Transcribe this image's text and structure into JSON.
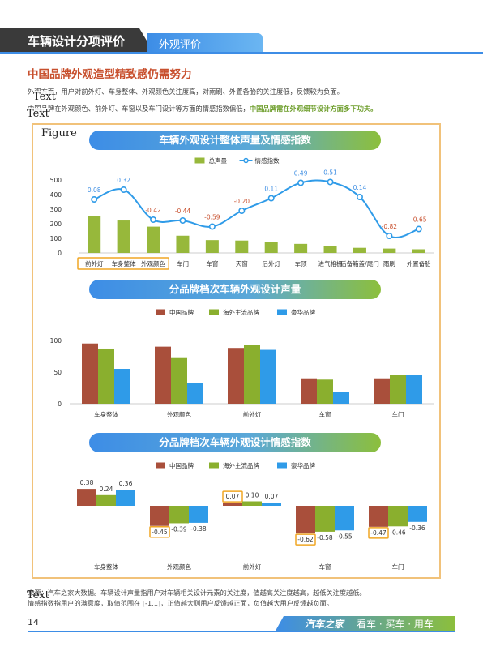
{
  "header": {
    "chapter": "车辆设计分项评价",
    "section": "外观评价"
  },
  "section_title": "中国品牌外观造型精致感仍需努力",
  "paragraphs": {
    "line1": "外观方面，用户对前外灯、车身整体、外观颜色关注度高，对雨刷、外置备胎的关注度低，反馈较为负面。",
    "line2a": "中国品牌在外观颜色、前外灯、车窗以及车门设计等方面的情感指数偏低，",
    "line2b": "中国品牌需在外观细节设计方面多下功夫。"
  },
  "layout_tags": {
    "text1": "Text",
    "text2": "Text",
    "figure": "Figure",
    "text3": "Text"
  },
  "colors": {
    "bar_green": "#97b83b",
    "line_blue": "#2f9be8",
    "china": "#a94f3b",
    "overseas": "#8aaf2e",
    "luxury": "#2f9be8",
    "positive": "#3e8ee3",
    "negative": "#c8502e",
    "highlight": "#f0a623"
  },
  "chart_data": [
    {
      "type": "bar",
      "title": "车辆外观设计整体声量及情感指数",
      "legend": [
        "总声量",
        "情感指数"
      ],
      "legend_position": "top-center",
      "categories": [
        "前外灯",
        "车身整体",
        "外观颜色",
        "车门",
        "车窗",
        "天窗",
        "后外灯",
        "车顶",
        "进气格栅",
        "后备箱盖/尾门",
        "雨刷",
        "外置备胎"
      ],
      "series": [
        {
          "name": "总声量",
          "type": "bar",
          "values": [
            250,
            222,
            180,
            118,
            88,
            85,
            75,
            62,
            50,
            35,
            30,
            25
          ]
        },
        {
          "name": "情感指数",
          "type": "line",
          "values": [
            0.08,
            0.32,
            -0.42,
            -0.44,
            -0.59,
            -0.2,
            0.11,
            0.49,
            0.51,
            0.14,
            -0.82,
            -0.65
          ],
          "labels": [
            "0.08",
            "0.32",
            "-0.42",
            "-0.44",
            "-0.59",
            "-0.20",
            "0.11",
            "0.49",
            "0.51",
            "0.14",
            "-0.82",
            "-0.65"
          ]
        }
      ],
      "y_ticks": [
        "0",
        "100",
        "200",
        "300",
        "400",
        "500"
      ],
      "ylim": [
        0,
        500
      ],
      "highlighted_categories": [
        "前外灯",
        "车身整体",
        "外观颜色"
      ]
    },
    {
      "type": "bar",
      "title": "分品牌档次车辆外观设计声量",
      "legend": [
        "中国品牌",
        "海外主流品牌",
        "豪华品牌"
      ],
      "legend_position": "top-center",
      "categories": [
        "车身整体",
        "外观颜色",
        "前外灯",
        "车窗",
        "车门"
      ],
      "series": [
        {
          "name": "中国品牌",
          "values": [
            95,
            90,
            88,
            40,
            40
          ]
        },
        {
          "name": "海外主流品牌",
          "values": [
            87,
            72,
            93,
            38,
            45
          ]
        },
        {
          "name": "豪华品牌",
          "values": [
            55,
            33,
            85,
            18,
            45
          ]
        }
      ],
      "y_ticks": [
        "0",
        "50",
        "100"
      ],
      "ylim": [
        0,
        110
      ]
    },
    {
      "type": "bar",
      "title": "分品牌档次车辆外观设计情感指数",
      "legend": [
        "中国品牌",
        "海外主流品牌",
        "豪华品牌"
      ],
      "legend_position": "top-center",
      "categories": [
        "车身整体",
        "外观颜色",
        "前外灯",
        "车窗",
        "车门"
      ],
      "series": [
        {
          "name": "中国品牌",
          "values": [
            0.38,
            -0.45,
            0.07,
            -0.62,
            -0.47
          ],
          "labels": [
            "0.38",
            "-0.45",
            "0.07",
            "-0.62",
            "-0.47"
          ]
        },
        {
          "name": "海外主流品牌",
          "values": [
            0.24,
            -0.39,
            0.1,
            -0.58,
            -0.46
          ],
          "labels": [
            "0.24",
            "-0.39",
            "0.10",
            "-0.58",
            "-0.46"
          ]
        },
        {
          "name": "豪华品牌",
          "values": [
            0.36,
            -0.38,
            0.07,
            -0.55,
            -0.36
          ],
          "labels": [
            "0.36",
            "-0.38",
            "0.07",
            "-0.55",
            "-0.36"
          ]
        }
      ],
      "ylim": [
        -0.7,
        0.45
      ],
      "highlighted_labels": [
        "-0.45",
        "0.07",
        "-0.62",
        "-0.47"
      ]
    }
  ],
  "source": {
    "line1": "来源：汽车之家大数据。车辆设计声量指用户对车辆相关设计元素的关注度，值越高关注度越高，越低关注度越低。",
    "line2": "情感指数指用户的满意度，取值范围在 [-1,1]，正值越大则用户反馈越正面，负值越大用户反馈越负面。"
  },
  "footer": {
    "page": "14",
    "brand": "汽车之家",
    "slogan": "看车 · 买车 · 用车"
  }
}
